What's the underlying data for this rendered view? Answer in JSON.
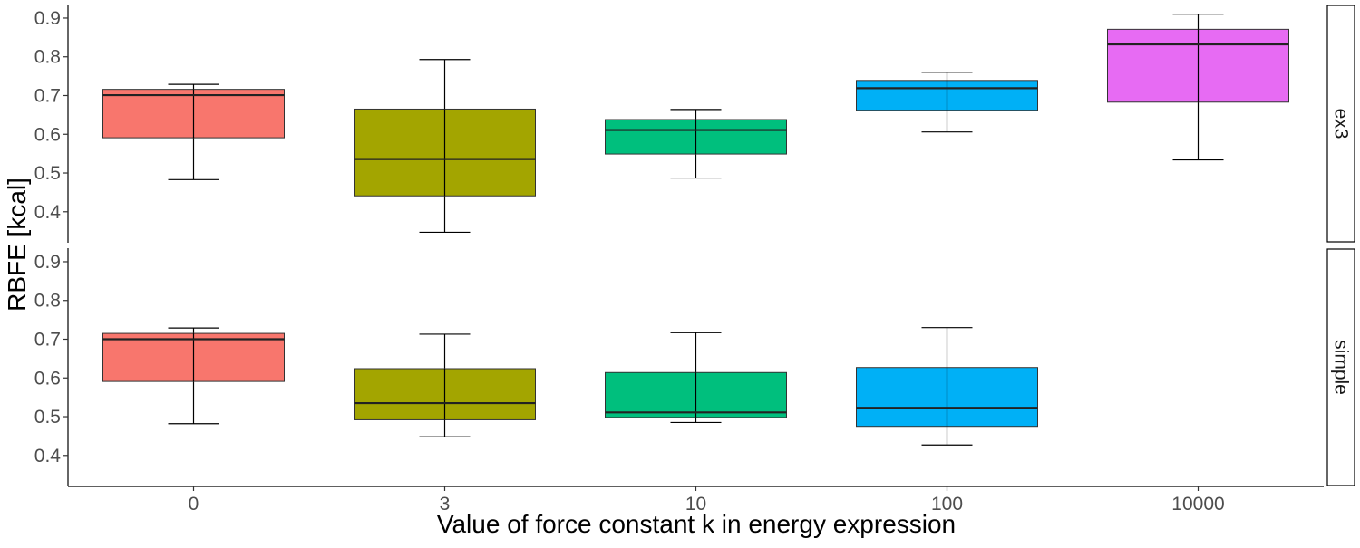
{
  "chart_data": {
    "type": "boxplot",
    "xlabel": "Value of force constant k in energy expression",
    "ylabel": "RBFE [kcal]",
    "categories": [
      "0",
      "3",
      "10",
      "100",
      "10000"
    ],
    "colors": [
      "#F8766D",
      "#A3A500",
      "#00BF7D",
      "#00B0F6",
      "#E76BF3"
    ],
    "ylim": [
      0.32,
      0.935
    ],
    "yticks": [
      0.4,
      0.5,
      0.6,
      0.7,
      0.8,
      0.9
    ],
    "ytick_labels": [
      "0.4",
      "0.5",
      "0.6",
      "0.7",
      "0.8",
      "0.9"
    ],
    "facets": [
      {
        "label": "ex3",
        "boxes": [
          {
            "category": "0",
            "min": 0.483,
            "q1": 0.591,
            "median": 0.701,
            "q3": 0.716,
            "max": 0.729
          },
          {
            "category": "3",
            "min": 0.347,
            "q1": 0.441,
            "median": 0.536,
            "q3": 0.665,
            "max": 0.793
          },
          {
            "category": "10",
            "min": 0.487,
            "q1": 0.549,
            "median": 0.611,
            "q3": 0.638,
            "max": 0.664
          },
          {
            "category": "100",
            "min": 0.606,
            "q1": 0.662,
            "median": 0.719,
            "q3": 0.739,
            "max": 0.76
          },
          {
            "category": "10000",
            "min": 0.534,
            "q1": 0.683,
            "median": 0.832,
            "q3": 0.871,
            "max": 0.91
          }
        ]
      },
      {
        "label": "simple",
        "boxes": [
          {
            "category": "0",
            "min": 0.482,
            "q1": 0.591,
            "median": 0.7,
            "q3": 0.715,
            "max": 0.729
          },
          {
            "category": "3",
            "min": 0.448,
            "q1": 0.492,
            "median": 0.535,
            "q3": 0.624,
            "max": 0.713
          },
          {
            "category": "10",
            "min": 0.485,
            "q1": 0.498,
            "median": 0.511,
            "q3": 0.614,
            "max": 0.717
          },
          {
            "category": "100",
            "min": 0.427,
            "q1": 0.475,
            "median": 0.523,
            "q3": 0.627,
            "max": 0.73
          }
        ]
      }
    ],
    "legend": "none",
    "grid": false
  }
}
